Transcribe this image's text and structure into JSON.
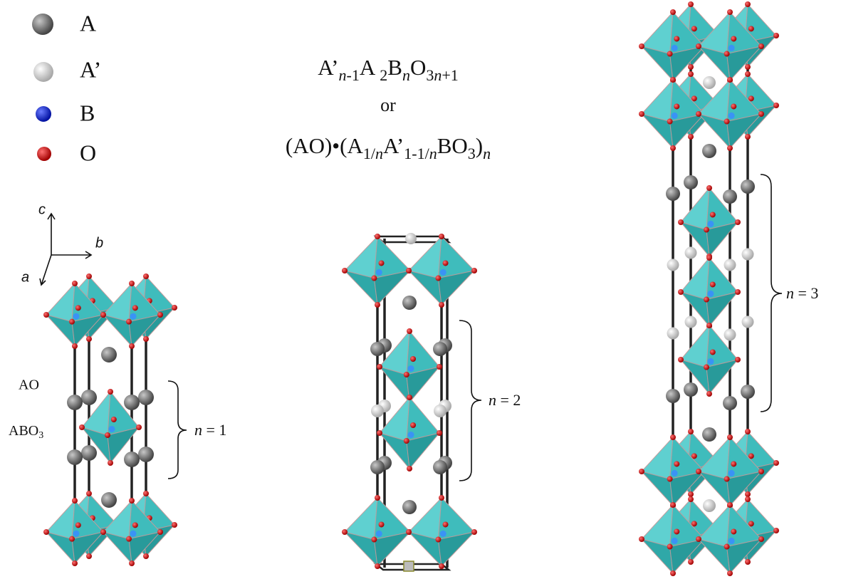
{
  "legend": {
    "items": [
      "A",
      "A’",
      "B",
      "O"
    ]
  },
  "formula": {
    "line1": [
      "A’",
      "n",
      "-1",
      "A ",
      "2",
      "B",
      "n",
      "O",
      "3",
      "n",
      "+1"
    ],
    "or": "or",
    "line2": [
      "(AO)•(A",
      "1/",
      "n",
      "A’",
      "1-1/",
      "n",
      "BO",
      "3",
      ")",
      "n"
    ]
  },
  "axes": {
    "c": "c",
    "b": "b",
    "a": "a"
  },
  "layer_labels": {
    "ao": "AO",
    "abo3": [
      "ABO",
      "3"
    ]
  },
  "brackets": [
    [
      "n",
      " = 1"
    ],
    [
      "n",
      " = 2"
    ],
    [
      "n",
      " = 3"
    ]
  ]
}
